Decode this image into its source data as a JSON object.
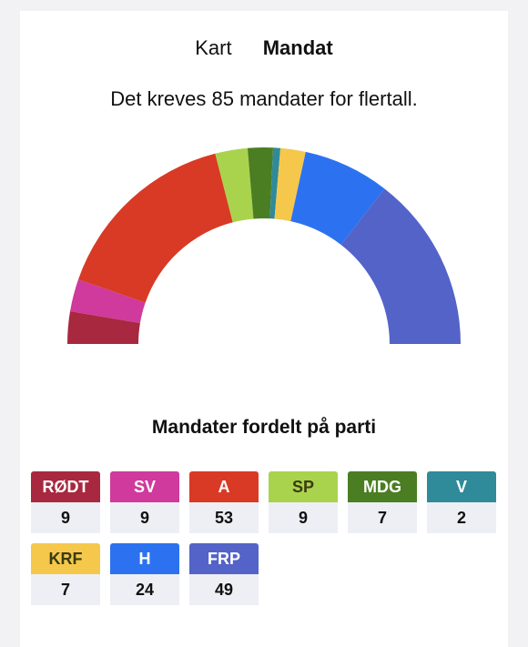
{
  "tabs": {
    "map_label": "Kart",
    "seats_label": "Mandat"
  },
  "majority_text": "Det kreves 85 mandater for flertall.",
  "section_title": "Mandater fordelt på parti",
  "chart_data": {
    "type": "pie",
    "variant": "semicircle-donut",
    "start": "left",
    "categories": [
      "RØDT",
      "SV",
      "A",
      "SP",
      "MDG",
      "V",
      "KRF",
      "H",
      "FRP"
    ],
    "values": [
      9,
      9,
      53,
      9,
      7,
      2,
      7,
      24,
      49
    ],
    "colors": [
      "#a8283f",
      "#cf3a9c",
      "#d93a25",
      "#a9d34c",
      "#4b7d22",
      "#2f8a99",
      "#f5c84c",
      "#2c72f0",
      "#5363c8"
    ]
  },
  "parties": [
    {
      "abbr": "RØDT",
      "seats": "9",
      "color": "#a8283f",
      "dark_text": false
    },
    {
      "abbr": "SV",
      "seats": "9",
      "color": "#cf3a9c",
      "dark_text": false
    },
    {
      "abbr": "A",
      "seats": "53",
      "color": "#d93a25",
      "dark_text": false
    },
    {
      "abbr": "SP",
      "seats": "9",
      "color": "#a9d34c",
      "dark_text": true
    },
    {
      "abbr": "MDG",
      "seats": "7",
      "color": "#4b7d22",
      "dark_text": false
    },
    {
      "abbr": "V",
      "seats": "2",
      "color": "#2f8a99",
      "dark_text": false
    },
    {
      "abbr": "KRF",
      "seats": "7",
      "color": "#f5c84c",
      "dark_text": true
    },
    {
      "abbr": "H",
      "seats": "24",
      "color": "#2c72f0",
      "dark_text": false
    },
    {
      "abbr": "FRP",
      "seats": "49",
      "color": "#5363c8",
      "dark_text": false
    }
  ]
}
